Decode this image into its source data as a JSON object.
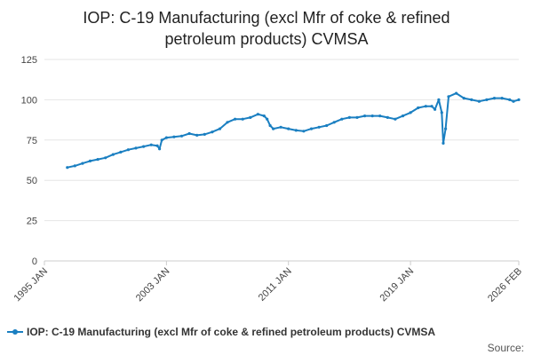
{
  "chart_data": {
    "type": "line",
    "title_lines": [
      "IOP: C-19 Manufacturing (excl Mfr of coke & refined",
      "petroleum products) CVMSA"
    ],
    "xlabel": "",
    "ylabel": "",
    "ylim": [
      0,
      125
    ],
    "yticks": [
      0,
      25,
      50,
      75,
      100,
      125
    ],
    "xlim": [
      1995.0,
      2026.1
    ],
    "xticks": [
      {
        "label": "1995 JAN",
        "value": 1995.0
      },
      {
        "label": "2003 JAN",
        "value": 2003.0
      },
      {
        "label": "2011 JAN",
        "value": 2011.0
      },
      {
        "label": "2019 JAN",
        "value": 2019.0
      },
      {
        "label": "2026 FEB",
        "value": 2026.1
      }
    ],
    "grid": true,
    "legend_position": "bottom",
    "source_label": "Source:",
    "series": [
      {
        "name": "IOP: C-19 Manufacturing (excl Mfr of coke & refined petroleum products) CVMSA",
        "color": "#1a7fc1",
        "points": [
          [
            1996.5,
            58
          ],
          [
            1997.0,
            59
          ],
          [
            1997.5,
            60.5
          ],
          [
            1998.0,
            62
          ],
          [
            1998.5,
            63
          ],
          [
            1999.0,
            64
          ],
          [
            1999.5,
            66
          ],
          [
            2000.0,
            67.5
          ],
          [
            2000.5,
            69
          ],
          [
            2001.0,
            70
          ],
          [
            2001.5,
            71
          ],
          [
            2002.0,
            72
          ],
          [
            2002.4,
            71.5
          ],
          [
            2002.55,
            69.5
          ],
          [
            2002.7,
            75
          ],
          [
            2003.0,
            76.5
          ],
          [
            2003.5,
            77
          ],
          [
            2004.0,
            77.5
          ],
          [
            2004.5,
            79
          ],
          [
            2005.0,
            78
          ],
          [
            2005.5,
            78.5
          ],
          [
            2006.0,
            80
          ],
          [
            2006.5,
            82
          ],
          [
            2007.0,
            86
          ],
          [
            2007.5,
            88
          ],
          [
            2008.0,
            88
          ],
          [
            2008.5,
            89
          ],
          [
            2009.0,
            91
          ],
          [
            2009.4,
            90
          ],
          [
            2009.6,
            88
          ],
          [
            2009.8,
            84
          ],
          [
            2010.0,
            82
          ],
          [
            2010.5,
            83
          ],
          [
            2011.0,
            82
          ],
          [
            2011.5,
            81
          ],
          [
            2012.0,
            80.5
          ],
          [
            2012.5,
            82
          ],
          [
            2013.0,
            83
          ],
          [
            2013.5,
            84
          ],
          [
            2014.0,
            86
          ],
          [
            2014.5,
            88
          ],
          [
            2015.0,
            89
          ],
          [
            2015.5,
            89
          ],
          [
            2016.0,
            90
          ],
          [
            2016.5,
            90
          ],
          [
            2017.0,
            90
          ],
          [
            2017.5,
            89
          ],
          [
            2018.0,
            88
          ],
          [
            2018.5,
            90
          ],
          [
            2019.0,
            92
          ],
          [
            2019.5,
            95
          ],
          [
            2020.0,
            96
          ],
          [
            2020.4,
            96
          ],
          [
            2020.6,
            94
          ],
          [
            2020.85,
            100
          ],
          [
            2021.05,
            92
          ],
          [
            2021.15,
            73
          ],
          [
            2021.3,
            82
          ],
          [
            2021.5,
            102
          ],
          [
            2022.0,
            104
          ],
          [
            2022.5,
            101
          ],
          [
            2023.0,
            100
          ],
          [
            2023.5,
            99
          ],
          [
            2024.0,
            100
          ],
          [
            2024.5,
            101
          ],
          [
            2025.0,
            101
          ],
          [
            2025.5,
            100
          ],
          [
            2025.75,
            99
          ],
          [
            2026.1,
            100
          ]
        ]
      }
    ]
  }
}
